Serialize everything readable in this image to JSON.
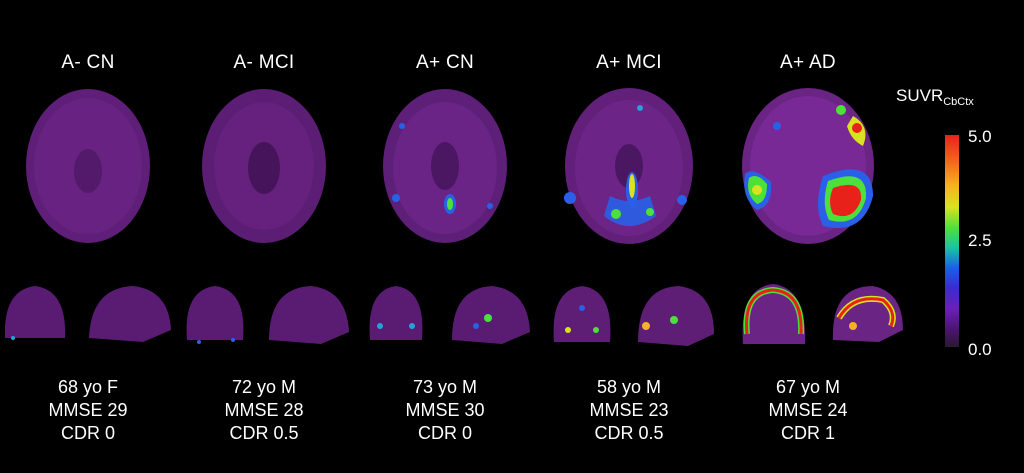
{
  "groups": [
    {
      "title": "A- CN",
      "age_sex": "68 yo F",
      "mmse": "MMSE 29",
      "cdr": "CDR 0"
    },
    {
      "title": "A- MCI",
      "age_sex": "72 yo M",
      "mmse": "MMSE 28",
      "cdr": "CDR 0.5"
    },
    {
      "title": "A+ CN",
      "age_sex": "73 yo M",
      "mmse": "MMSE 30",
      "cdr": "CDR 0"
    },
    {
      "title": "A+ MCI",
      "age_sex": "58 yo M",
      "mmse": "MMSE 23",
      "cdr": "CDR 0.5"
    },
    {
      "title": "A+ AD",
      "age_sex": "67 yo M",
      "mmse": "MMSE 24",
      "cdr": "CDR 1"
    }
  ],
  "colorbar": {
    "title_main": "SUVR",
    "title_sub": "CbCtx",
    "max_label": "5.0",
    "mid_label": "2.5",
    "min_label": "0.0",
    "colors": {
      "low": "#2a1a2e",
      "purple": "#7a2aa0",
      "blue": "#1a5ee8",
      "green": "#4ce03a",
      "yellow": "#d8e221",
      "red": "#e8221b"
    }
  }
}
